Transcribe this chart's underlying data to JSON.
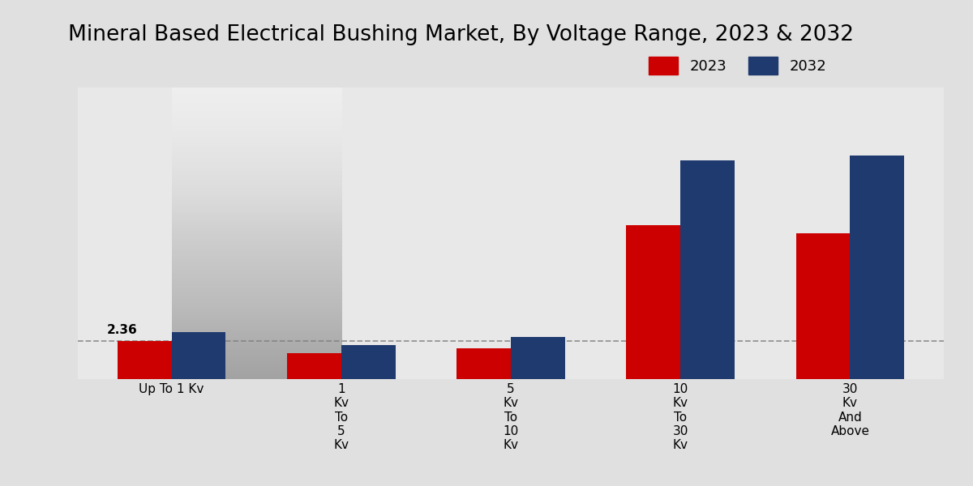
{
  "title": "Mineral Based Electrical Bushing Market, By Voltage Range, 2023 & 2032",
  "categories_display": [
    "Up To 1 Kv",
    "1\nKv\nTo\n5\nKv",
    "5\nKv\nTo\n10\nKv",
    "10\nKv\nTo\n30\nKv",
    "30\nKv\nAnd\nAbove"
  ],
  "values_2023": [
    2.36,
    1.6,
    1.9,
    9.5,
    9.0
  ],
  "values_2032": [
    2.9,
    2.1,
    2.6,
    13.5,
    13.8
  ],
  "color_2023": "#cc0000",
  "color_2032": "#1e3a6e",
  "annotation_value": "2.36",
  "dashed_line_y": 2.36,
  "bar_width": 0.32,
  "legend_labels": [
    "2023",
    "2032"
  ],
  "ylim": [
    0,
    18
  ],
  "title_fontsize": 19,
  "ylabel_fontsize": 12,
  "tick_fontsize": 11,
  "legend_fontsize": 13,
  "bg_color_top": "#e8e8e8",
  "bg_color_bottom": "#d0d0d0"
}
